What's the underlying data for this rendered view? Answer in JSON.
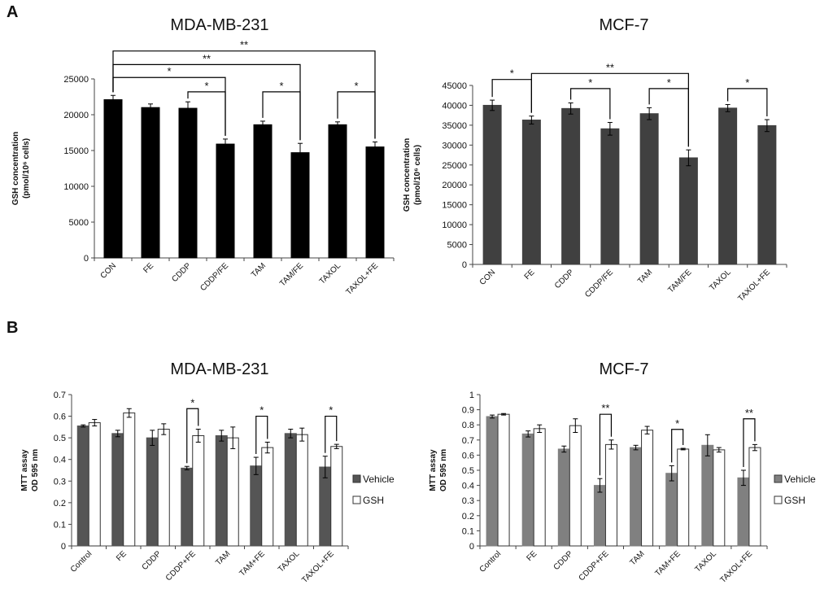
{
  "panels": {
    "a": "A",
    "b": "B"
  },
  "chart_data": [
    {
      "id": "a1",
      "type": "bar",
      "title": "MDA-MB-231",
      "ylabel_line1": "GSH concentration",
      "ylabel_line2": "(pmol/10⁶ cells)",
      "categories": [
        "CON",
        "FE",
        "CDDP",
        "CDDP/FE",
        "TAM",
        "TAM/FE",
        "TAXOL",
        "TAXOL+FE"
      ],
      "ylim": [
        0,
        25000
      ],
      "yticks": [
        0,
        5000,
        10000,
        15000,
        20000,
        25000
      ],
      "series": [
        {
          "name": "GSH",
          "color": "#000000",
          "values": [
            22100,
            21000,
            20900,
            15900,
            18600,
            14700,
            18600,
            15500
          ],
          "errors": [
            600,
            500,
            900,
            700,
            500,
            1300,
            400,
            700
          ]
        }
      ],
      "brackets": [
        {
          "from": 0,
          "to": 7,
          "label": "**",
          "level": 28900
        },
        {
          "from": 0,
          "to": 5,
          "label": "**",
          "level": 27000
        },
        {
          "from": 0,
          "to": 3,
          "label": "*",
          "level": 25200
        },
        {
          "from": 2,
          "to": 3,
          "label": "*",
          "level": 23200
        },
        {
          "from": 4,
          "to": 5,
          "label": "*",
          "level": 23200
        },
        {
          "from": 6,
          "to": 7,
          "label": "*",
          "level": 23200
        }
      ]
    },
    {
      "id": "a2",
      "type": "bar",
      "title": "MCF-7",
      "ylabel_line1": "GSH concentration",
      "ylabel_line2": "(pmol/10⁶ cells)",
      "categories": [
        "CON",
        "FE",
        "CDDP",
        "CDDP/FE",
        "TAM",
        "TAM/FE",
        "TAXOL",
        "TAXOL+FE"
      ],
      "ylim": [
        0,
        45000
      ],
      "yticks": [
        0,
        5000,
        10000,
        15000,
        20000,
        25000,
        30000,
        35000,
        40000,
        45000
      ],
      "series": [
        {
          "name": "GSH",
          "color": "#404040",
          "values": [
            40000,
            36300,
            39200,
            34100,
            37900,
            26800,
            39300,
            34900
          ],
          "errors": [
            1300,
            1000,
            1400,
            1600,
            1500,
            2000,
            900,
            1500
          ]
        }
      ],
      "brackets": [
        {
          "from": 0,
          "to": 1,
          "label": "*",
          "level": 46500
        },
        {
          "from": 1,
          "to": 5,
          "label": "**",
          "level": 48000
        },
        {
          "from": 2,
          "to": 3,
          "label": "*",
          "level": 44200
        },
        {
          "from": 4,
          "to": 5,
          "label": "*",
          "level": 44200
        },
        {
          "from": 6,
          "to": 7,
          "label": "*",
          "level": 44200
        }
      ]
    },
    {
      "id": "b1",
      "type": "bar",
      "title": "MDA-MB-231",
      "ylabel_line1": "MTT assay",
      "ylabel_line2": "OD 595 nm",
      "categories": [
        "Control",
        "FE",
        "CDDP",
        "CDDP+FE",
        "TAM",
        "TAM+FE",
        "TAXOL",
        "TAXOL+FE"
      ],
      "ylim": [
        0,
        0.7
      ],
      "yticks": [
        0,
        0.1,
        0.2,
        0.3,
        0.4,
        0.5,
        0.6,
        0.7
      ],
      "legend_position": "right",
      "series": [
        {
          "name": "Vehicle",
          "color": "#555555",
          "values": [
            0.555,
            0.52,
            0.5,
            0.36,
            0.51,
            0.37,
            0.52,
            0.365
          ],
          "errors": [
            0.005,
            0.015,
            0.035,
            0.008,
            0.025,
            0.04,
            0.02,
            0.05
          ]
        },
        {
          "name": "GSH",
          "color": "#ffffff",
          "values": [
            0.57,
            0.615,
            0.54,
            0.51,
            0.5,
            0.455,
            0.515,
            0.46
          ],
          "errors": [
            0.015,
            0.02,
            0.025,
            0.03,
            0.05,
            0.025,
            0.03,
            0.01
          ]
        }
      ],
      "brackets": [
        {
          "from": 3,
          "to": 3,
          "label": "*",
          "level": 0.635
        },
        {
          "from": 5,
          "to": 5,
          "label": "*",
          "level": 0.6
        },
        {
          "from": 7,
          "to": 7,
          "label": "*",
          "level": 0.6
        }
      ]
    },
    {
      "id": "b2",
      "type": "bar",
      "title": "MCF-7",
      "ylabel_line1": "MTT assay",
      "ylabel_line2": "OD 595 nm",
      "categories": [
        "Control",
        "FE",
        "CDDP",
        "CDDP+FE",
        "TAM",
        "TAM+FE",
        "TAXOL",
        "TAXOL+FE"
      ],
      "ylim": [
        0,
        1
      ],
      "yticks": [
        0,
        0.1,
        0.2,
        0.3,
        0.4,
        0.5,
        0.6,
        0.7,
        0.8,
        0.9,
        1
      ],
      "legend_position": "right",
      "series": [
        {
          "name": "Vehicle",
          "color": "#808080",
          "values": [
            0.855,
            0.74,
            0.64,
            0.4,
            0.65,
            0.48,
            0.665,
            0.45
          ],
          "errors": [
            0.01,
            0.02,
            0.02,
            0.045,
            0.015,
            0.05,
            0.07,
            0.05
          ]
        },
        {
          "name": "GSH",
          "color": "#ffffff",
          "values": [
            0.87,
            0.775,
            0.795,
            0.67,
            0.765,
            0.64,
            0.635,
            0.65
          ],
          "errors": [
            0.005,
            0.025,
            0.045,
            0.03,
            0.025,
            0.005,
            0.015,
            0.02
          ]
        }
      ],
      "brackets": [
        {
          "from": 3,
          "to": 3,
          "label": "**",
          "level": 0.87
        },
        {
          "from": 5,
          "to": 5,
          "label": "*",
          "level": 0.77
        },
        {
          "from": 7,
          "to": 7,
          "label": "**",
          "level": 0.84
        }
      ]
    }
  ]
}
